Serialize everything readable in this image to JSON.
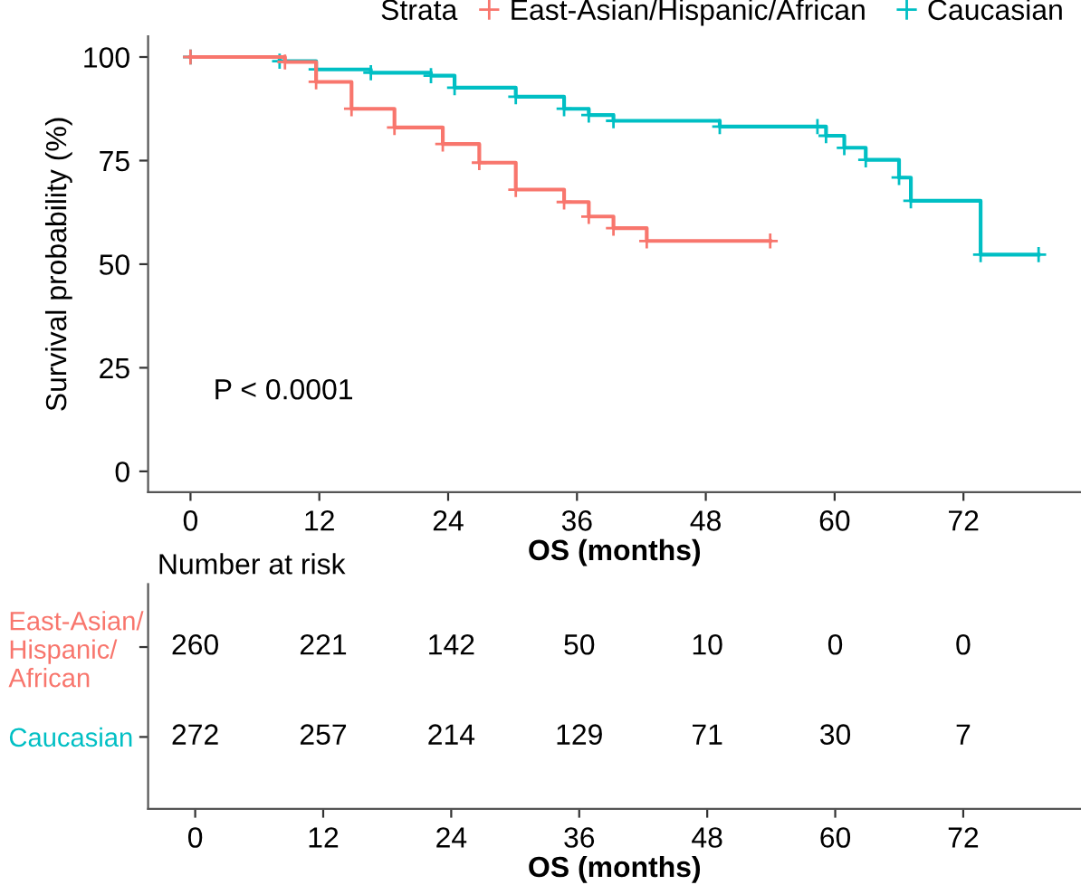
{
  "chart_data": [
    {
      "type": "step",
      "xlabel": "OS (months)",
      "ylabel": "Survival probability (%)",
      "legend_title": "Strata",
      "legend": "top",
      "marker": "cross",
      "grid": false,
      "xlim": [
        -3.95,
        82.95
      ],
      "xticks": [
        0,
        12,
        24,
        36,
        48,
        60,
        72
      ],
      "ylim": [
        -5,
        105
      ],
      "yticks": [
        0,
        25,
        50,
        75,
        100
      ],
      "annotations": [
        "P < 0.0001"
      ],
      "series": [
        {
          "name": "East-Asian/Hispanic/African",
          "color": "#f8766d",
          "x": [
            0,
            8.8,
            11.7,
            15,
            19,
            23.5,
            26.9,
            30.3,
            34.8,
            37.1,
            39.4,
            42.5,
            54
          ],
          "values": [
            100,
            98.8,
            94,
            87.5,
            83,
            79,
            74.5,
            68,
            65,
            61.5,
            58.7,
            55.6,
            55.6
          ]
        },
        {
          "name": "Caucasian",
          "color": "#00bfc4",
          "x": [
            0,
            8.3,
            11.7,
            16.8,
            22.4,
            24.6,
            30.3,
            34.8,
            37.1,
            39.4,
            49.3,
            58.4,
            59.2,
            60.9,
            62.9,
            66,
            67.1,
            73.6,
            79
          ],
          "values": [
            100,
            99,
            97,
            96.2,
            95.5,
            92.6,
            90.4,
            87.5,
            86,
            84.6,
            83.2,
            83.2,
            81,
            78.1,
            75.2,
            70.9,
            65.3,
            52.3,
            52.3
          ]
        }
      ]
    },
    {
      "type": "heatmap",
      "title": "Number at risk",
      "xlabel": "OS (months)",
      "categories": [
        "0",
        "12",
        "24",
        "36",
        "48",
        "60",
        "72"
      ],
      "data_labels": true,
      "y_categories": [
        "East-Asian/\nHispanic/\nAfrican",
        "Caucasian"
      ],
      "cells": [
        [
          260,
          221,
          142,
          50,
          10,
          0,
          0
        ],
        [
          272,
          257,
          214,
          129,
          71,
          30,
          7
        ]
      ]
    }
  ]
}
